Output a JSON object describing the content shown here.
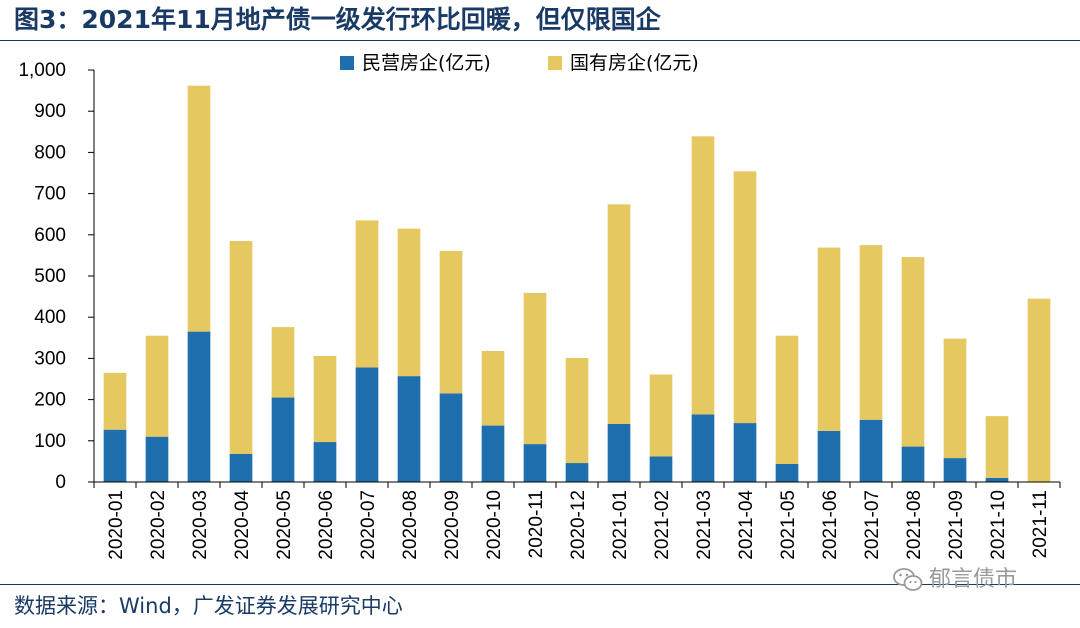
{
  "title": "图3：2021年11月地产债一级发行环比回暖，但仅限国企",
  "source": "数据来源：Wind，广发证券发展研究中心",
  "watermark": "郁言债市",
  "colors": {
    "private": "#1f6ead",
    "state": "#e6c861",
    "title": "#1a3a66"
  },
  "chart_data": {
    "type": "bar",
    "stacked": true,
    "categories": [
      "2020-01",
      "2020-02",
      "2020-03",
      "2020-04",
      "2020-05",
      "2020-06",
      "2020-07",
      "2020-08",
      "2020-09",
      "2020-10",
      "2020-11",
      "2020-12",
      "2021-01",
      "2021-02",
      "2021-03",
      "2021-04",
      "2021-05",
      "2021-06",
      "2021-07",
      "2021-08",
      "2021-09",
      "2021-10",
      "2021-11"
    ],
    "series": [
      {
        "name": "民营房企(亿元)",
        "values": [
          127,
          110,
          365,
          68,
          205,
          97,
          278,
          257,
          215,
          137,
          92,
          46,
          141,
          62,
          164,
          143,
          44,
          124,
          151,
          86,
          58,
          10,
          0
        ]
      },
      {
        "name": "国有房企(亿元)",
        "values": [
          138,
          245,
          597,
          517,
          171,
          209,
          357,
          358,
          346,
          181,
          367,
          255,
          533,
          199,
          675,
          611,
          311,
          445,
          424,
          460,
          290,
          150,
          445
        ]
      }
    ],
    "ylim": [
      0,
      1000
    ],
    "yticks": [
      0,
      100,
      200,
      300,
      400,
      500,
      600,
      700,
      800,
      900,
      1000
    ],
    "ytick_labels": [
      "0",
      "100",
      "200",
      "300",
      "400",
      "500",
      "600",
      "700",
      "800",
      "900",
      "1,000"
    ],
    "legend_position": "top",
    "grid": false
  }
}
